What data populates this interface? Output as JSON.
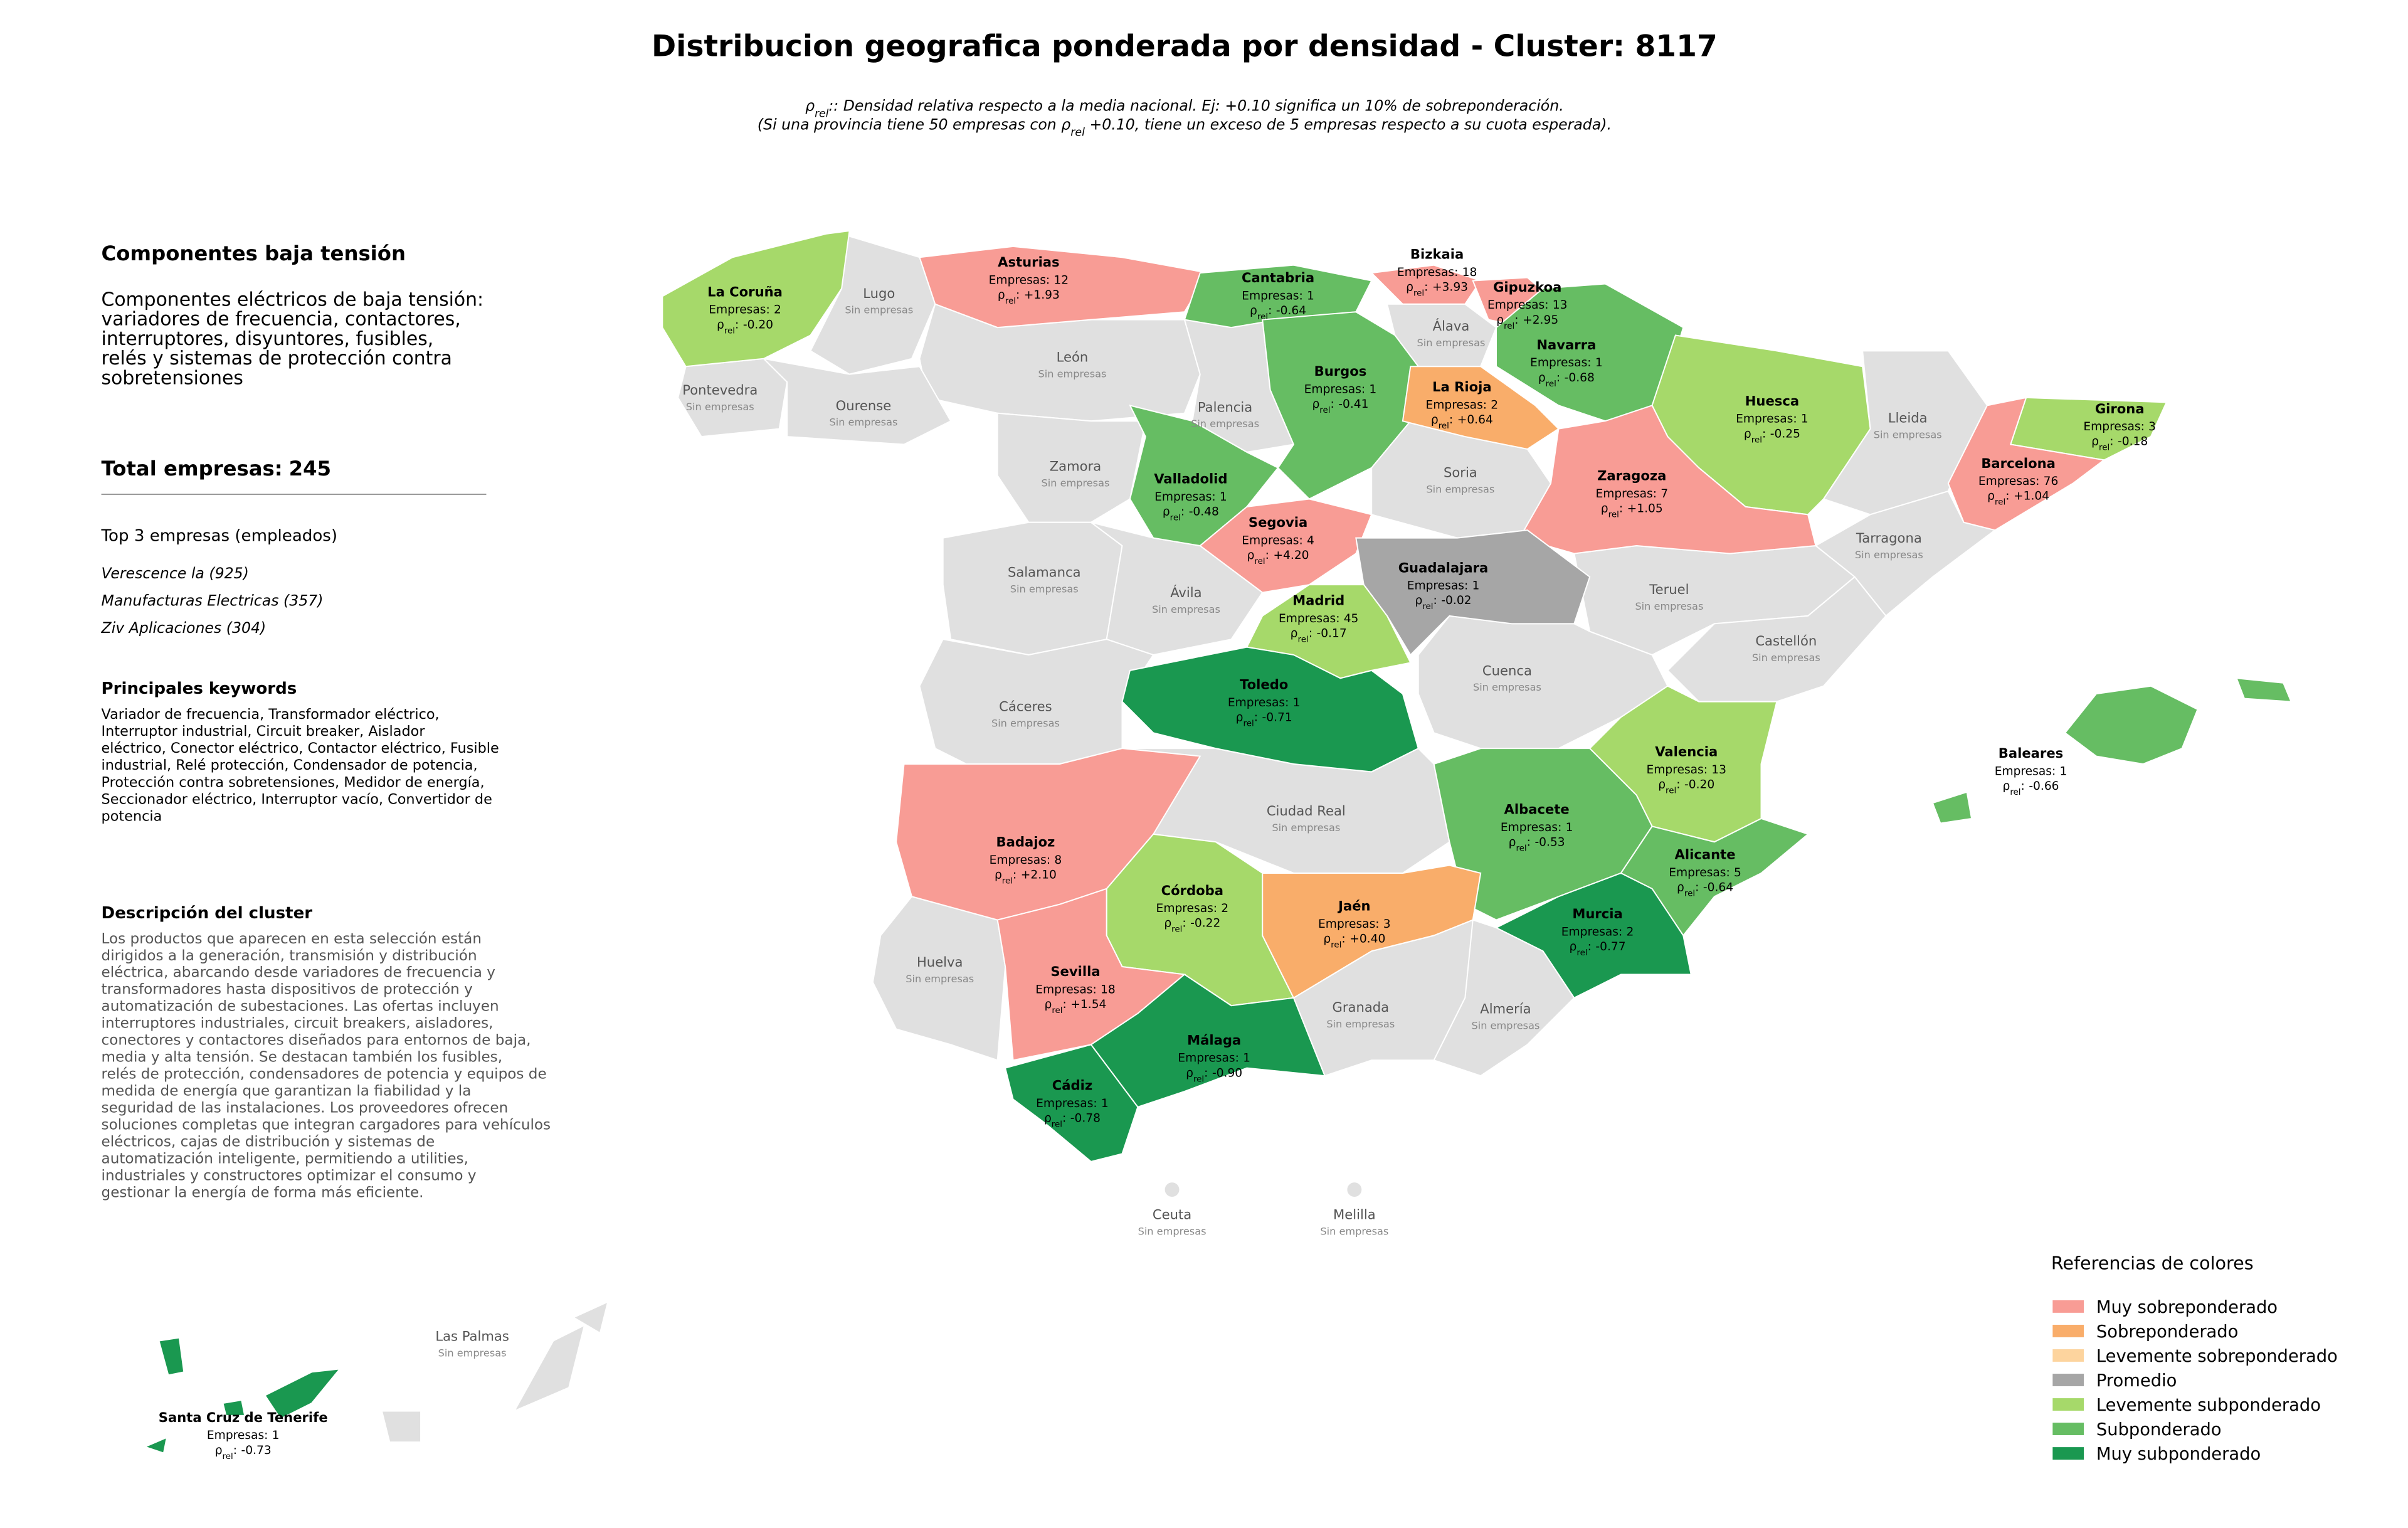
{
  "header": {
    "title": "Distribucion geografica ponderada por densidad - Cluster: 8117",
    "note1": ": Densidad relativa respecto a la media nacional. Ej: +0.10 significa un 10% de sobreponderación.",
    "note2a": "(Si una provincia tiene 50 empresas con ",
    "note2b": " +0.10, tiene un exceso de 5 empresas respecto a su cuota esperada)."
  },
  "symbol": {
    "rho": "ρ",
    "sub": "rel",
    "sep": ":"
  },
  "sidebar": {
    "title": "Componentes baja tensión",
    "description": [
      "Componentes eléctricos de baja tensión:",
      "variadores de frecuencia, contactores,",
      "interruptores, disyuntores, fusibles,",
      "relés y sistemas de protección contra",
      "sobretensiones"
    ],
    "total_label": "Total empresas:",
    "total": 245,
    "top_title": "Top 3 empresas (empleados)",
    "top": [
      "Verescence la (925)",
      "Manufacturas Electricas (357)",
      "Ziv Aplicaciones (304)"
    ],
    "keywords_title": "Principales keywords",
    "keywords": [
      "Variador de frecuencia, Transformador eléctrico,",
      "Interruptor industrial, Circuit breaker, Aislador",
      "eléctrico, Conector eléctrico, Contactor eléctrico, Fusible",
      "industrial, Relé protección, Condensador de potencia,",
      "Protección contra sobretensiones, Medidor de energía,",
      "Seccionador eléctrico, Interruptor vacío, Convertidor de",
      "potencia"
    ],
    "cluster_title": "Descripción del cluster",
    "cluster_text": [
      "Los productos que aparecen en esta selección están",
      "dirigidos a la generación, transmisión y distribución",
      "eléctrica, abarcando desde variadores de frecuencia y",
      "transformadores hasta dispositivos de protección y",
      "automatización de subestaciones. Las ofertas incluyen",
      "interruptores industriales, circuit breakers, aisladores,",
      "conectores y contactores diseñados para entornos de baja,",
      "media y alta tensión. Se destacan también los fusibles,",
      "relés de protección, condensadores de potencia y equipos de",
      "medida de energía que garantizan la fiabilidad y la",
      "seguridad de las instalaciones. Los proveedores ofrecen",
      "soluciones completas que integran cargadores para vehículos",
      "eléctricos, cajas de distribución y sistemas de",
      "automatización inteligente, permitiendo a utilities,",
      "industriales y constructores optimizar el consumo y",
      "gestionar la energía de forma más eficiente."
    ]
  },
  "map": {
    "count_label": "Empresas:",
    "no_companies": "Sin empresas",
    "empty_color": "#e0e0e0",
    "provinces": [
      {
        "name": "La Coruña",
        "count": 2,
        "rho": "-0.20",
        "color": "#a6d96a"
      },
      {
        "name": "Asturias",
        "count": 12,
        "rho": "+1.93",
        "color": "#f89c95"
      },
      {
        "name": "Cantabria",
        "count": 1,
        "rho": "-0.64",
        "color": "#66bd63"
      },
      {
        "name": "Bizkaia",
        "count": 18,
        "rho": "+3.93",
        "color": "#f89c95"
      },
      {
        "name": "Gipuzkoa",
        "count": 13,
        "rho": "+2.95",
        "color": "#f89c95"
      },
      {
        "name": "Navarra",
        "count": 1,
        "rho": "-0.68",
        "color": "#66bd63"
      },
      {
        "name": "Burgos",
        "count": 1,
        "rho": "-0.41",
        "color": "#66bd63"
      },
      {
        "name": "La Rioja",
        "count": 2,
        "rho": "+0.64",
        "color": "#f9ad6a"
      },
      {
        "name": "Huesca",
        "count": 1,
        "rho": "-0.25",
        "color": "#a6d96a"
      },
      {
        "name": "Girona",
        "count": 3,
        "rho": "-0.18",
        "color": "#a6d96a"
      },
      {
        "name": "Barcelona",
        "count": 76,
        "rho": "+1.04",
        "color": "#f89c95"
      },
      {
        "name": "Zaragoza",
        "count": 7,
        "rho": "+1.05",
        "color": "#f89c95"
      },
      {
        "name": "Valladolid",
        "count": 1,
        "rho": "-0.48",
        "color": "#66bd63"
      },
      {
        "name": "Segovia",
        "count": 4,
        "rho": "+4.20",
        "color": "#f89c95"
      },
      {
        "name": "Guadalajara",
        "count": 1,
        "rho": "-0.02",
        "color": "#a6a6a6"
      },
      {
        "name": "Madrid",
        "count": 45,
        "rho": "-0.17",
        "color": "#a6d96a"
      },
      {
        "name": "Toledo",
        "count": 1,
        "rho": "-0.71",
        "color": "#1a9850"
      },
      {
        "name": "Valencia",
        "count": 13,
        "rho": "-0.20",
        "color": "#a6d96a"
      },
      {
        "name": "Baleares",
        "count": 1,
        "rho": "-0.66",
        "color": "#66bd63"
      },
      {
        "name": "Albacete",
        "count": 1,
        "rho": "-0.53",
        "color": "#66bd63"
      },
      {
        "name": "Alicante",
        "count": 5,
        "rho": "-0.64",
        "color": "#66bd63"
      },
      {
        "name": "Badajoz",
        "count": 8,
        "rho": "+2.10",
        "color": "#f89c95"
      },
      {
        "name": "Córdoba",
        "count": 2,
        "rho": "-0.22",
        "color": "#a6d96a"
      },
      {
        "name": "Jaén",
        "count": 3,
        "rho": "+0.40",
        "color": "#f9ad6a"
      },
      {
        "name": "Murcia",
        "count": 2,
        "rho": "-0.77",
        "color": "#1a9850"
      },
      {
        "name": "Sevilla",
        "count": 18,
        "rho": "+1.54",
        "color": "#f89c95"
      },
      {
        "name": "Málaga",
        "count": 1,
        "rho": "-0.90",
        "color": "#1a9850"
      },
      {
        "name": "Cádiz",
        "count": 1,
        "rho": "-0.78",
        "color": "#1a9850"
      },
      {
        "name": "Santa Cruz de Tenerife",
        "count": 1,
        "rho": "-0.73",
        "color": "#1a9850"
      }
    ],
    "empty": [
      "Lugo",
      "Álava",
      "León",
      "Pontevedra",
      "Ourense",
      "Palencia",
      "Lleida",
      "Zamora",
      "Soria",
      "Tarragona",
      "Salamanca",
      "Ávila",
      "Teruel",
      "Castellón",
      "Cuenca",
      "Cáceres",
      "Ciudad Real",
      "Huelva",
      "Granada",
      "Almería",
      "Ceuta",
      "Melilla",
      "Las Palmas"
    ]
  },
  "legend": {
    "title": "Referencias de colores",
    "items": [
      {
        "name": "Muy sobreponderado",
        "color": "#f89c95"
      },
      {
        "name": "Sobreponderado",
        "color": "#f9ad6a"
      },
      {
        "name": "Levemente sobreponderado",
        "color": "#fdd49e"
      },
      {
        "name": "Promedio",
        "color": "#a6a6a6"
      },
      {
        "name": "Levemente subponderado",
        "color": "#a6d96a"
      },
      {
        "name": "Subponderado",
        "color": "#66bd63"
      },
      {
        "name": "Muy subponderado",
        "color": "#1a9850"
      }
    ]
  }
}
